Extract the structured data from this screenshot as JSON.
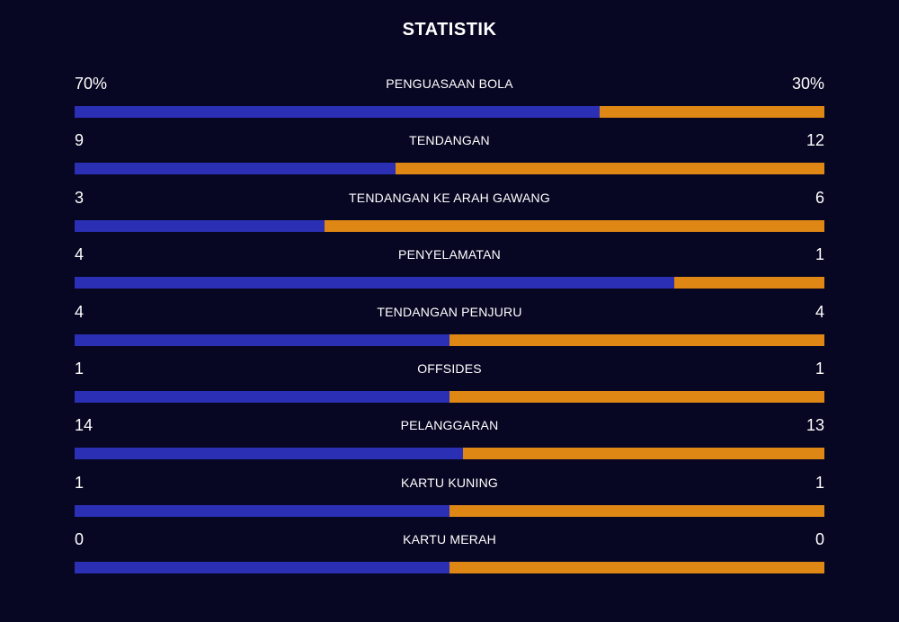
{
  "title": "STATISTIK",
  "colors": {
    "background": "#070723",
    "home": "#2b2fb4",
    "away": "#de8714"
  },
  "stats": [
    {
      "label": "PENGUASAAN BOLA",
      "home_display": "70%",
      "away_display": "30%",
      "home": 70,
      "away": 30
    },
    {
      "label": "TENDANGAN",
      "home_display": "9",
      "away_display": "12",
      "home": 9,
      "away": 12
    },
    {
      "label": "TENDANGAN KE ARAH GAWANG",
      "home_display": "3",
      "away_display": "6",
      "home": 3,
      "away": 6
    },
    {
      "label": "PENYELAMATAN",
      "home_display": "4",
      "away_display": "1",
      "home": 4,
      "away": 1
    },
    {
      "label": "TENDANGAN PENJURU",
      "home_display": "4",
      "away_display": "4",
      "home": 4,
      "away": 4
    },
    {
      "label": "OFFSIDES",
      "home_display": "1",
      "away_display": "1",
      "home": 1,
      "away": 1
    },
    {
      "label": "PELANGGARAN",
      "home_display": "14",
      "away_display": "13",
      "home": 14,
      "away": 13
    },
    {
      "label": "KARTU KUNING",
      "home_display": "1",
      "away_display": "1",
      "home": 1,
      "away": 1
    },
    {
      "label": "KARTU MERAH",
      "home_display": "0",
      "away_display": "0",
      "home": 0,
      "away": 0
    }
  ]
}
